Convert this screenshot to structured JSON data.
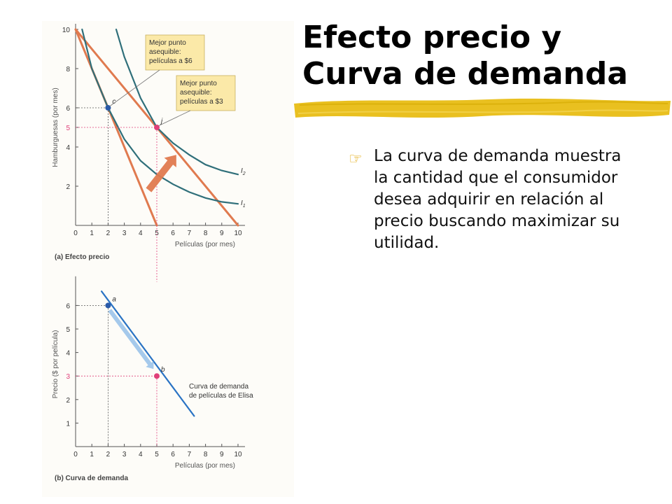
{
  "slide": {
    "title": "Efecto precio y Curva de demanda",
    "bullet": "La curva de demanda muestra la cantidad que el consumidor desea adquirir en relación al precio buscando maximizar su utilidad.",
    "bullet_icon": "pointing-hand-icon",
    "underline_color": "#e9c020",
    "bullet_icon_color": "#e0a400"
  },
  "chart_data": [
    {
      "type": "line",
      "panel_label": "(a) Efecto precio",
      "xlabel": "Películas (por mes)",
      "ylabel": "Hamburguesas (por mes)",
      "xlim": [
        0,
        10
      ],
      "ylim": [
        0,
        10
      ],
      "x_ticks": [
        0,
        1,
        2,
        3,
        4,
        5,
        6,
        7,
        8,
        9,
        10
      ],
      "y_ticks": [
        2,
        4,
        5,
        6,
        8,
        10
      ],
      "series": [
        {
          "kind": "budget-line",
          "points": [
            [
              0,
              10
            ],
            [
              5,
              0
            ]
          ],
          "color": "#e07a4f"
        },
        {
          "kind": "budget-line",
          "points": [
            [
              0,
              10
            ],
            [
              10,
              0
            ]
          ],
          "color": "#e07a4f"
        },
        {
          "name": "I1",
          "kind": "indifference-curve",
          "points": [
            [
              0.4,
              10
            ],
            [
              1,
              8
            ],
            [
              2,
              6
            ],
            [
              3,
              4.4
            ],
            [
              4,
              3.3
            ],
            [
              5,
              2.6
            ],
            [
              6,
              2.1
            ],
            [
              7,
              1.7
            ],
            [
              8,
              1.4
            ],
            [
              9,
              1.2
            ],
            [
              10,
              1.1
            ]
          ],
          "color": "#2f6f7a"
        },
        {
          "name": "I2",
          "kind": "indifference-curve",
          "points": [
            [
              2.5,
              10
            ],
            [
              3,
              8.6
            ],
            [
              4,
              6.5
            ],
            [
              5,
              5
            ],
            [
              6,
              4.2
            ],
            [
              7,
              3.6
            ],
            [
              8,
              3.1
            ],
            [
              9,
              2.8
            ],
            [
              10,
              2.6
            ]
          ],
          "color": "#2f6f7a"
        }
      ],
      "points": [
        {
          "label": "c",
          "x": 2,
          "y": 6,
          "color": "#2a5aa8"
        },
        {
          "label": "j",
          "x": 5,
          "y": 5,
          "color": "#e0407a"
        }
      ],
      "annotations": [
        {
          "text_lines": [
            "Mejor punto",
            "asequible:",
            "películas a $6"
          ],
          "target": "c"
        },
        {
          "text_lines": [
            "Mejor punto",
            "asequible:",
            "películas a $3"
          ],
          "target": "j"
        }
      ],
      "series_labels": [
        {
          "text": "I",
          "sub": "2"
        },
        {
          "text": "I",
          "sub": "1"
        }
      ],
      "arrow": {
        "from": [
          4.5,
          1.8
        ],
        "to": [
          6.2,
          3.6
        ],
        "color": "#e07a4f"
      },
      "grid": false
    },
    {
      "type": "line",
      "panel_label": "(b) Curva de demanda",
      "xlabel": "Películas (por mes)",
      "ylabel": "Precio ($ por película)",
      "xlim": [
        0,
        10
      ],
      "ylim": [
        0,
        7
      ],
      "x_ticks": [
        0,
        1,
        2,
        3,
        4,
        5,
        6,
        7,
        8,
        9,
        10
      ],
      "y_ticks": [
        1,
        2,
        3,
        4,
        5,
        6
      ],
      "series": [
        {
          "name": "Curva de demanda de películas de Elisa",
          "points": [
            [
              1.6,
              6.6
            ],
            [
              7.3,
              1.3
            ]
          ],
          "color": "#2a73c4"
        }
      ],
      "series_label_lines": [
        "Curva de demanda",
        "de películas de Elisa"
      ],
      "points": [
        {
          "label": "a",
          "x": 2,
          "y": 6,
          "color": "#2a5aa8"
        },
        {
          "label": "b",
          "x": 5,
          "y": 3,
          "color": "#e0407a"
        }
      ],
      "arrow": {
        "from": [
          2.1,
          5.8
        ],
        "to": [
          4.8,
          3.3
        ],
        "color": "#7fb4e6"
      },
      "grid": false
    }
  ]
}
